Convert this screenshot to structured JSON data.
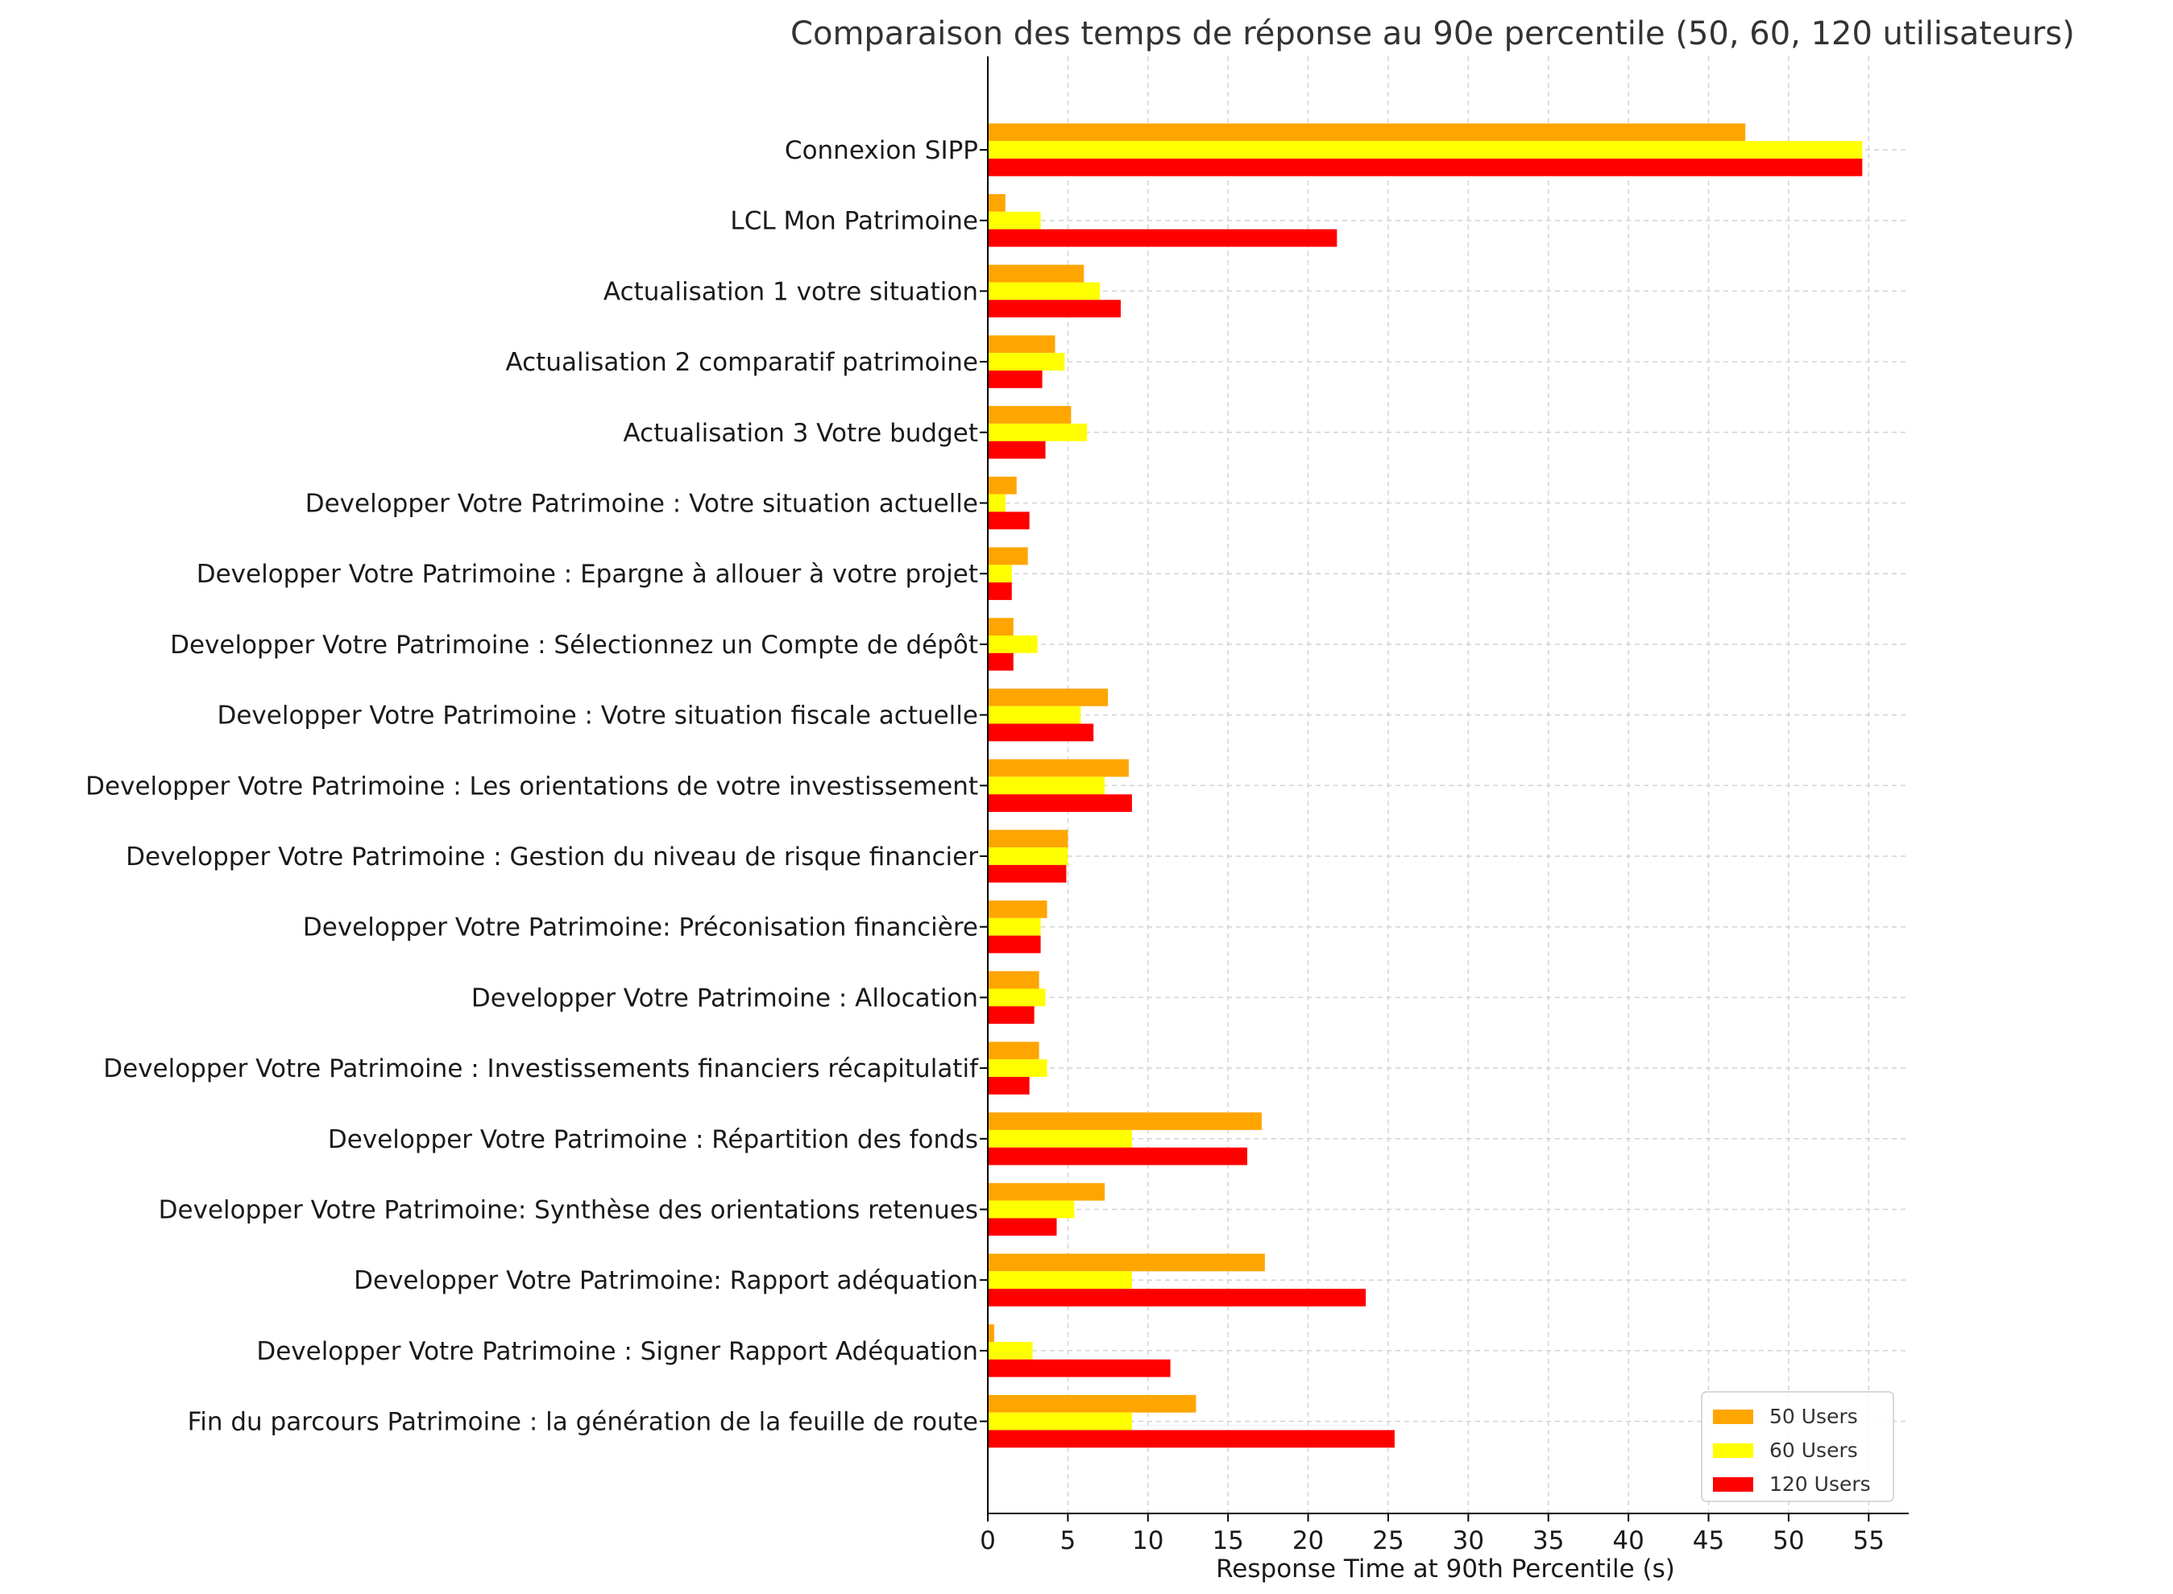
{
  "chart_data": {
    "type": "bar",
    "orientation": "horizontal",
    "title": "Comparaison des temps de réponse au 90e percentile (50, 60, 120 utilisateurs)",
    "xlabel": "Response Time at 90th Percentile (s)",
    "ylabel": "",
    "xlim": [
      0,
      57.5
    ],
    "xticks": [
      "0",
      "5",
      "10",
      "15",
      "20",
      "25",
      "30",
      "35",
      "40",
      "45",
      "50",
      "55"
    ],
    "grid": true,
    "legend_position": "lower-right",
    "categories": [
      "Connexion SIPP",
      "LCL Mon Patrimoine",
      "Actualisation 1 votre situation",
      "Actualisation 2 comparatif patrimoine",
      "Actualisation 3 Votre budget",
      "Developper Votre Patrimoine : Votre situation actuelle",
      "Developper Votre Patrimoine : Epargne à allouer à votre projet",
      "Developper Votre Patrimoine : Sélectionnez un Compte de dépôt",
      "Developper Votre Patrimoine : Votre situation fiscale actuelle",
      "Developper Votre Patrimoine : Les orientations de votre investissement",
      "Developper Votre Patrimoine : Gestion du niveau de risque financier",
      "Developper Votre Patrimoine: Préconisation financière",
      "Developper Votre Patrimoine : Allocation",
      "Developper Votre Patrimoine : Investissements financiers récapitulatif",
      "Developper Votre Patrimoine : Répartition des fonds",
      "Developper Votre Patrimoine: Synthèse des orientations retenues",
      "Developper Votre Patrimoine: Rapport adéquation",
      "Developper Votre Patrimoine : Signer Rapport Adéquation",
      "Fin du parcours Patrimoine : la génération de la feuille de route"
    ],
    "series": [
      {
        "name": "50 Users",
        "color": "#FFA500",
        "values": [
          47.3,
          1.1,
          6.0,
          4.2,
          5.2,
          1.8,
          2.5,
          1.6,
          7.5,
          8.8,
          5.0,
          3.7,
          3.2,
          3.2,
          17.1,
          7.3,
          17.3,
          0.4,
          13.0
        ]
      },
      {
        "name": "60 Users",
        "color": "#FFFF00",
        "values": [
          54.6,
          3.3,
          7.0,
          4.8,
          6.2,
          1.1,
          1.5,
          3.1,
          5.8,
          7.3,
          5.0,
          3.3,
          3.6,
          3.7,
          9.0,
          5.4,
          9.0,
          2.8,
          9.0
        ]
      },
      {
        "name": "120 Users",
        "color": "#FF0000",
        "values": [
          54.6,
          21.8,
          8.3,
          3.4,
          3.6,
          2.6,
          1.5,
          1.6,
          6.6,
          9.0,
          4.9,
          3.3,
          2.9,
          2.6,
          16.2,
          4.3,
          23.6,
          11.4,
          25.4
        ]
      }
    ]
  }
}
